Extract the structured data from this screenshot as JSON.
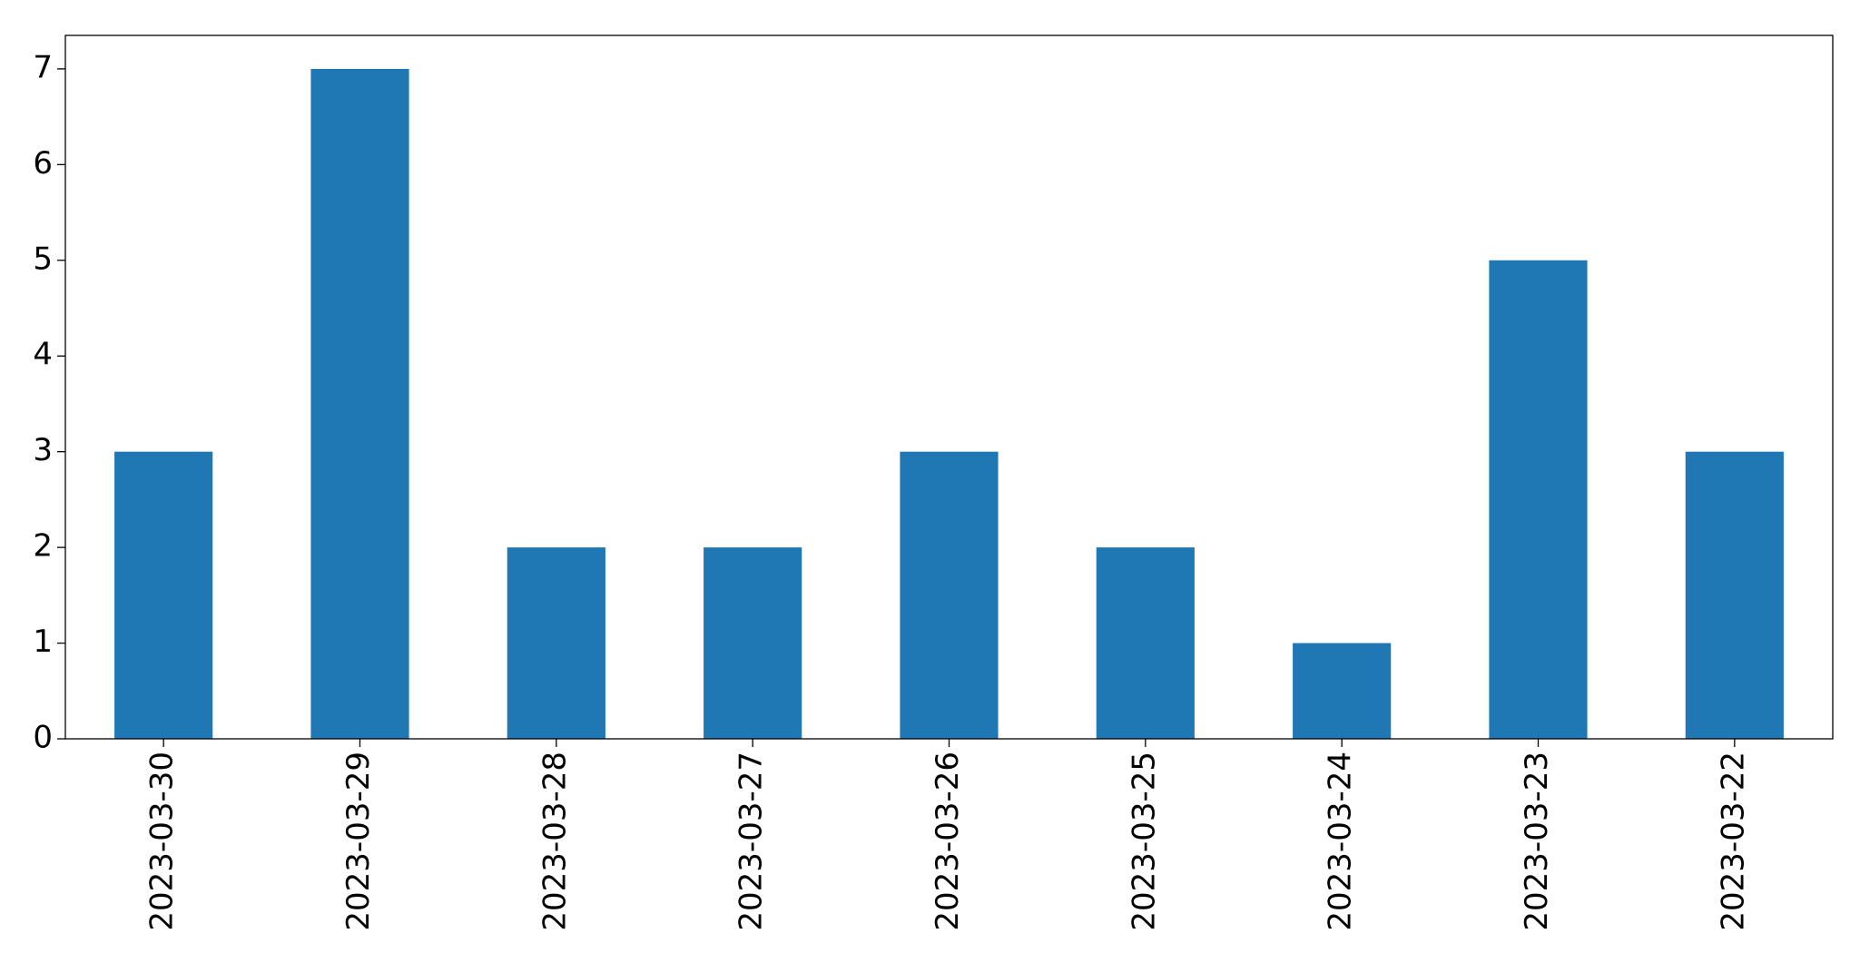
{
  "chart_data": {
    "type": "bar",
    "categories": [
      "2023-03-30",
      "2023-03-29",
      "2023-03-28",
      "2023-03-27",
      "2023-03-26",
      "2023-03-25",
      "2023-03-24",
      "2023-03-23",
      "2023-03-22"
    ],
    "values": [
      3,
      7,
      2,
      2,
      3,
      2,
      1,
      5,
      3
    ],
    "color": "#1f77b4",
    "ylim": [
      0,
      7.35
    ],
    "yticks": [
      0,
      1,
      2,
      3,
      4,
      5,
      6,
      7
    ],
    "grid": false
  }
}
